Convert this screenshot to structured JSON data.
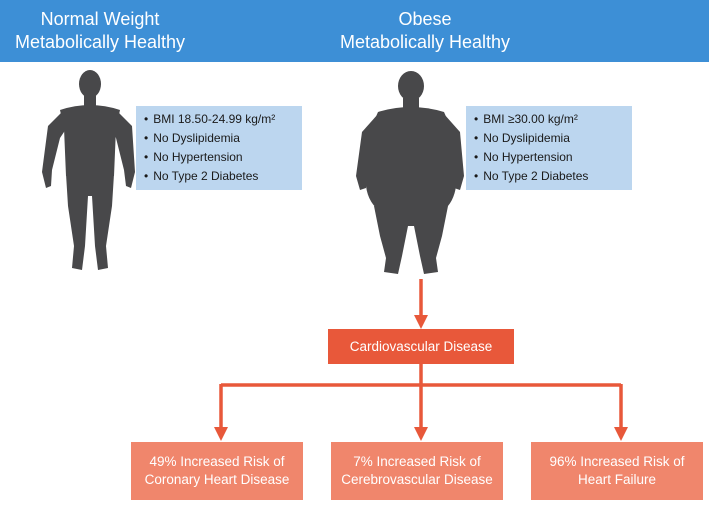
{
  "header": {
    "left_title": [
      "Normal Weight",
      "Metabolically Healthy"
    ],
    "right_title": [
      "Obese",
      "Metabolically Healthy"
    ]
  },
  "normal_weight_criteria": [
    "BMI 18.50-24.99 kg/m²",
    "No Dyslipidemia",
    "No Hypertension",
    "No Type 2 Diabetes"
  ],
  "obese_criteria": [
    "BMI ≥30.00 kg/m²",
    "No Dyslipidemia",
    "No Hypertension",
    "No Type 2 Diabetes"
  ],
  "outcome": "Cardiovascular Disease",
  "risks": [
    [
      "49% Increased Risk of",
      "Coronary Heart Disease"
    ],
    [
      "7% Increased Risk of",
      "Cerebrovascular Disease"
    ],
    [
      "96% Increased Risk of",
      "Heart Failure"
    ]
  ],
  "colors": {
    "header": "#3d8fd6",
    "criteria_box": "#bcd6ef",
    "silhouette": "#48484a",
    "outcome_box": "#e8583a",
    "risk_box": "#f0866c",
    "arrow": "#e8583a"
  }
}
